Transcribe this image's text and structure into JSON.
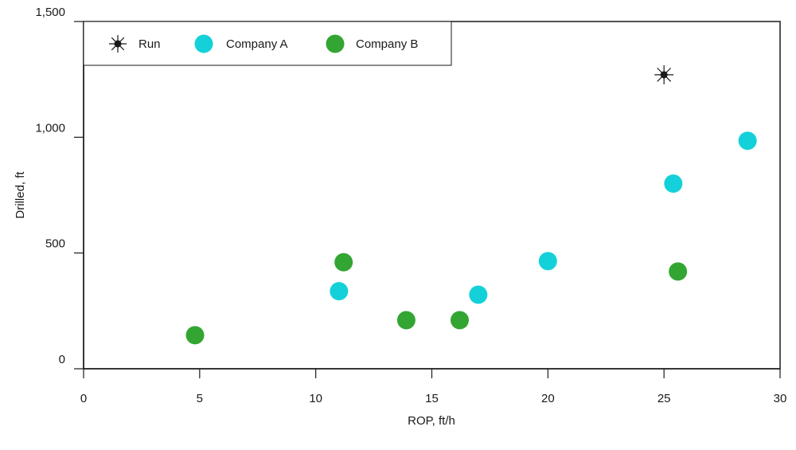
{
  "chart_data": {
    "type": "scatter",
    "xlabel": "ROP, ft/h",
    "ylabel": "Drilled, ft",
    "xlim": [
      0,
      30
    ],
    "ylim": [
      0,
      1500
    ],
    "x_ticks": [
      0,
      5,
      10,
      15,
      20,
      25,
      30
    ],
    "y_ticks": [
      0,
      500,
      1000,
      1500
    ],
    "x_tick_labels": [
      "0",
      "5",
      "10",
      "15",
      "20",
      "25",
      "30"
    ],
    "y_tick_labels": [
      "0",
      "500",
      "1,000",
      "1,500"
    ],
    "grid": false,
    "legend_position": "top-left",
    "series": [
      {
        "name": "Run",
        "marker": "star",
        "color": "#1a1a1a",
        "points": [
          {
            "x": 25.0,
            "y": 1270
          }
        ]
      },
      {
        "name": "Company A",
        "marker": "circle",
        "color": "#14d1d9",
        "points": [
          {
            "x": 11.0,
            "y": 335
          },
          {
            "x": 17.0,
            "y": 320
          },
          {
            "x": 20.0,
            "y": 465
          },
          {
            "x": 25.4,
            "y": 800
          },
          {
            "x": 28.6,
            "y": 985
          }
        ]
      },
      {
        "name": "Company B",
        "marker": "circle",
        "color": "#33a532",
        "points": [
          {
            "x": 4.8,
            "y": 145
          },
          {
            "x": 11.2,
            "y": 460
          },
          {
            "x": 13.9,
            "y": 210
          },
          {
            "x": 16.2,
            "y": 210
          },
          {
            "x": 25.6,
            "y": 420
          }
        ]
      }
    ]
  }
}
